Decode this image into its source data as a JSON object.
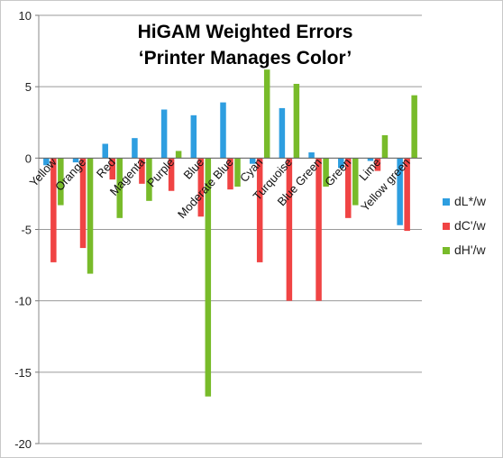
{
  "chart_data": {
    "type": "bar",
    "title": [
      "HiGAM Weighted Errors",
      "‘Printer Manages Color’"
    ],
    "xlabel": "",
    "ylabel": "",
    "ylim": [
      -20,
      10
    ],
    "yticks": [
      10,
      5,
      0,
      -5,
      -10,
      -15,
      -20
    ],
    "grid": true,
    "legend_position": "right",
    "categories": [
      "Yellow",
      "Orange",
      "Red",
      "Magenta",
      "Purple",
      "Blue",
      "Moderate Blue",
      "Cyan",
      "Turquoise",
      "Blue Green",
      "Green",
      "Lime",
      "Yellow green"
    ],
    "series": [
      {
        "name": "dL*/w",
        "color": "#2e9ee0",
        "values": [
          -0.5,
          -0.3,
          1.0,
          1.4,
          3.4,
          3.0,
          3.9,
          -0.4,
          3.5,
          0.4,
          -0.7,
          -0.2,
          -4.7
        ]
      },
      {
        "name": "dC'/w",
        "color": "#f04444",
        "values": [
          -7.3,
          -6.3,
          -1.5,
          -1.8,
          -2.3,
          -4.1,
          -2.2,
          -7.3,
          -10.0,
          -10.0,
          -4.2,
          -0.9,
          -5.1
        ]
      },
      {
        "name": "dH'/w",
        "color": "#78bb2a",
        "values": [
          -3.3,
          -8.1,
          -4.2,
          -3.0,
          0.5,
          -16.7,
          -2.0,
          6.2,
          5.2,
          -2.0,
          -3.3,
          1.6,
          4.4
        ]
      }
    ]
  }
}
